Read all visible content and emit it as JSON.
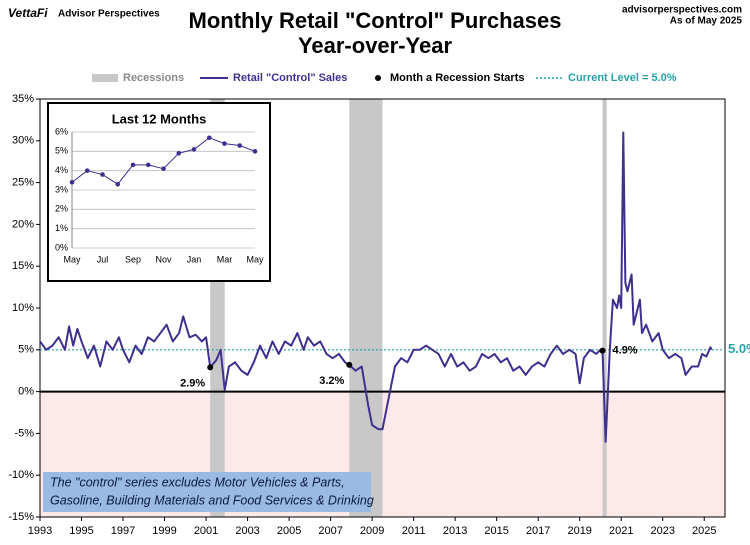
{
  "header": {
    "brand": "VettaFi",
    "brand_sub": "Advisor Perspectives",
    "site": "advisorperspectives.com",
    "as_of": "As of May 2025"
  },
  "note": [
    "The \"control\" series excludes Motor Vehicles & Parts,",
    "Gasoline, Building Materials and Food Services & Drinking"
  ],
  "chart_data": [
    {
      "type": "line",
      "title": [
        "Monthly Retail \"Control\" Purchases",
        "Year-over-Year"
      ],
      "x": [
        1993.0,
        1993.3,
        1993.6,
        1993.9,
        1994.2,
        1994.4,
        1994.6,
        1994.8,
        1995.0,
        1995.3,
        1995.6,
        1995.9,
        1996.2,
        1996.5,
        1996.8,
        1997.0,
        1997.3,
        1997.6,
        1997.9,
        1998.2,
        1998.5,
        1998.8,
        1999.1,
        1999.4,
        1999.7,
        1999.9,
        2000.2,
        2000.5,
        2000.8,
        2001.0,
        2001.2,
        2001.5,
        2001.7,
        2001.9,
        2002.1,
        2002.4,
        2002.7,
        2003.0,
        2003.3,
        2003.6,
        2003.9,
        2004.2,
        2004.5,
        2004.8,
        2005.1,
        2005.4,
        2005.7,
        2005.9,
        2006.2,
        2006.5,
        2006.8,
        2007.1,
        2007.4,
        2007.7,
        2007.9,
        2008.2,
        2008.5,
        2008.8,
        2009.0,
        2009.3,
        2009.5,
        2009.7,
        2009.9,
        2010.1,
        2010.4,
        2010.7,
        2011.0,
        2011.3,
        2011.6,
        2011.9,
        2012.2,
        2012.5,
        2012.8,
        2013.1,
        2013.4,
        2013.7,
        2014.0,
        2014.3,
        2014.6,
        2014.9,
        2015.2,
        2015.5,
        2015.8,
        2016.1,
        2016.4,
        2016.7,
        2017.0,
        2017.3,
        2017.6,
        2017.9,
        2018.2,
        2018.5,
        2018.8,
        2019.0,
        2019.2,
        2019.5,
        2019.8,
        2020.0,
        2020.1,
        2020.25,
        2020.45,
        2020.6,
        2020.8,
        2020.9,
        2021.0,
        2021.1,
        2021.2,
        2021.3,
        2021.5,
        2021.6,
        2021.9,
        2022.0,
        2022.2,
        2022.5,
        2022.8,
        2023.0,
        2023.3,
        2023.6,
        2023.9,
        2024.1,
        2024.4,
        2024.7,
        2024.9,
        2025.1,
        2025.3,
        2025.35
      ],
      "series": [
        {
          "name": "Retail \"Control\" Sales",
          "color": "#3f2f8f",
          "values": [
            6.0,
            5.0,
            5.5,
            6.5,
            5.0,
            7.8,
            5.5,
            7.5,
            6.0,
            4.0,
            5.5,
            3.0,
            6.0,
            5.0,
            6.5,
            5.0,
            3.5,
            5.5,
            4.5,
            6.5,
            6.0,
            7.0,
            8.0,
            6.0,
            7.0,
            9.0,
            6.5,
            6.8,
            6.0,
            6.5,
            2.9,
            3.8,
            5.0,
            0.2,
            3.0,
            3.5,
            2.5,
            2.0,
            3.5,
            5.5,
            4.0,
            6.0,
            4.5,
            6.0,
            5.5,
            7.0,
            5.0,
            6.5,
            5.5,
            6.0,
            4.5,
            4.0,
            4.5,
            3.5,
            3.2,
            2.5,
            3.0,
            -1.5,
            -4.0,
            -4.5,
            -4.5,
            -2.0,
            0.5,
            3.0,
            4.0,
            3.5,
            5.0,
            5.0,
            5.5,
            5.0,
            4.5,
            3.0,
            4.5,
            3.0,
            3.5,
            2.5,
            3.0,
            4.5,
            4.0,
            4.5,
            3.5,
            4.0,
            2.5,
            3.0,
            2.0,
            3.0,
            3.5,
            3.0,
            4.5,
            5.5,
            4.5,
            5.0,
            4.5,
            1.0,
            4.0,
            5.0,
            4.5,
            5.0,
            4.9,
            -6.0,
            5.0,
            11.0,
            10.0,
            11.5,
            10.0,
            31.0,
            13.0,
            12.0,
            14.0,
            8.0,
            11.0,
            7.0,
            8.0,
            6.0,
            7.0,
            5.0,
            4.0,
            4.5,
            4.0,
            2.0,
            3.0,
            3.0,
            4.5,
            4.2,
            5.3,
            5.0
          ]
        }
      ],
      "xlim": [
        1993,
        2026
      ],
      "xticks": [
        1993,
        1995,
        1997,
        1999,
        2001,
        2003,
        2005,
        2007,
        2009,
        2011,
        2013,
        2015,
        2017,
        2019,
        2021,
        2023,
        2025
      ],
      "ylim": [
        -15,
        35
      ],
      "yticks": [
        {
          "value": -15,
          "label": "-15%"
        },
        {
          "value": -10,
          "label": "-10%"
        },
        {
          "value": -5,
          "label": "-5%"
        },
        {
          "value": 0,
          "label": "0%"
        },
        {
          "value": 5,
          "label": "5%"
        },
        {
          "value": 10,
          "label": "10%"
        },
        {
          "value": 15,
          "label": "15%"
        },
        {
          "value": 20,
          "label": "20%"
        },
        {
          "value": 25,
          "label": "25%"
        },
        {
          "value": 30,
          "label": "30%"
        },
        {
          "value": 35,
          "label": "35%"
        }
      ],
      "recessions": {
        "name": "Recessions",
        "color": "#c8c8c8",
        "ranges": [
          [
            2001.2,
            2001.9
          ],
          [
            2007.9,
            2009.5
          ],
          [
            2020.1,
            2020.3
          ]
        ]
      },
      "recession_starts": {
        "name": "Month a Recession Starts",
        "color": "#000000",
        "x": [
          2001.2,
          2007.9,
          2020.1
        ],
        "values": [
          2.9,
          3.2,
          4.9
        ],
        "value_labels": [
          "2.9%",
          "3.2%",
          "4.9%"
        ]
      },
      "current_level": {
        "name": "Current Level = 5.0%",
        "value": 5.0,
        "value_label": "5.0%",
        "color": "#2a9fa8"
      }
    },
    {
      "type": "line",
      "title": "Last 12 Months",
      "categories": [
        "May",
        null,
        "Jul",
        null,
        "Sep",
        null,
        "Nov",
        null,
        "Jan",
        null,
        "Mar",
        null,
        "May"
      ],
      "values": [
        3.4,
        4.0,
        3.8,
        3.3,
        4.3,
        4.3,
        4.1,
        4.9,
        5.1,
        5.7,
        5.4,
        5.3,
        5.0
      ],
      "color": "#3f2f8f",
      "ylim": [
        0,
        6
      ],
      "yticks": [
        {
          "value": 0,
          "label": "0%"
        },
        {
          "value": 1,
          "label": "1%"
        },
        {
          "value": 2,
          "label": "2%"
        },
        {
          "value": 3,
          "label": "3%"
        },
        {
          "value": 4,
          "label": "4%"
        },
        {
          "value": 5,
          "label": "5%"
        },
        {
          "value": 6,
          "label": "6%"
        }
      ],
      "grid": true
    }
  ]
}
